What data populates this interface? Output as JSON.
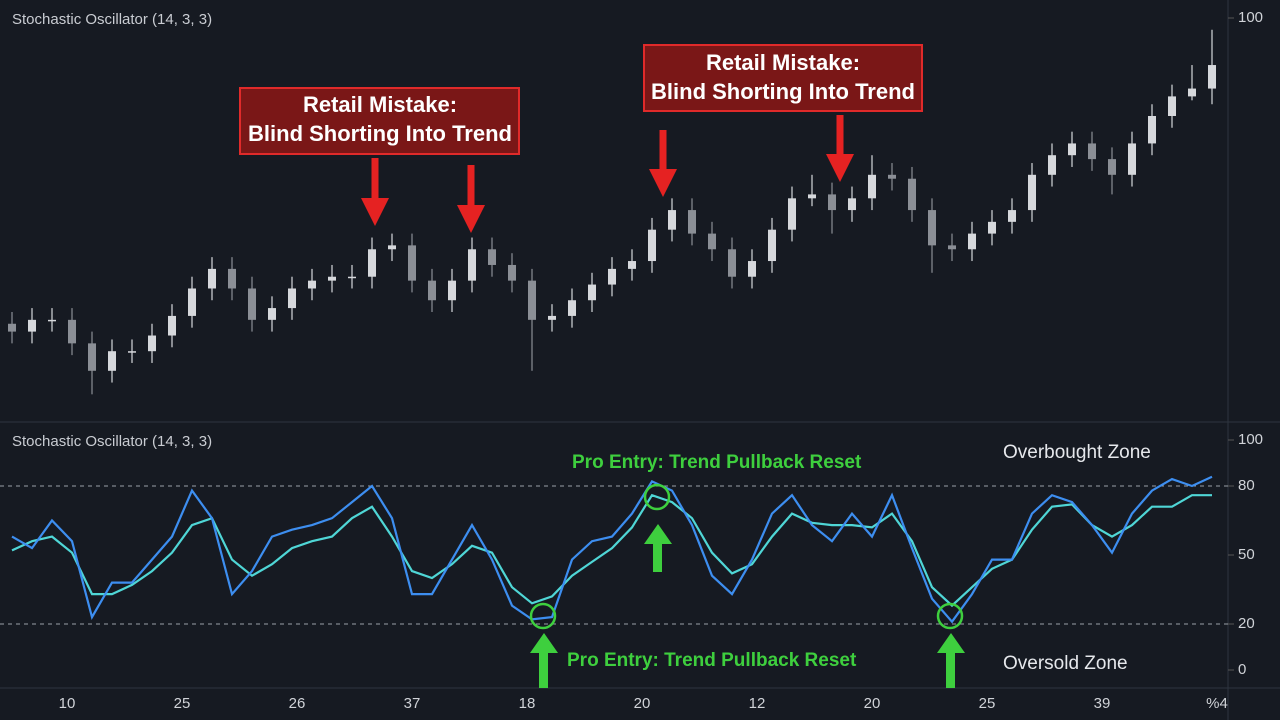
{
  "chart_data": [
    {
      "type": "candlestick",
      "title": "Stochastic Oscillator (14, 3, 3)",
      "open": [
        22,
        20,
        23,
        23,
        17,
        10,
        15,
        15,
        19,
        24,
        31,
        36,
        31,
        23,
        26,
        31,
        33,
        34,
        34,
        41,
        42,
        33,
        28,
        33,
        41,
        37,
        33,
        23,
        24,
        28,
        32,
        36,
        38,
        46,
        51,
        45,
        41,
        34,
        38,
        46,
        54,
        55,
        51,
        54,
        60,
        59,
        51,
        42,
        41,
        45,
        48,
        51,
        60,
        65,
        68,
        64,
        60,
        68,
        75,
        80,
        82
      ],
      "high": [
        25,
        26,
        26,
        26,
        20,
        18,
        18,
        22,
        27,
        34,
        39,
        39,
        34,
        29,
        34,
        36,
        37,
        37,
        44,
        45,
        45,
        36,
        36,
        44,
        44,
        40,
        36,
        27,
        31,
        35,
        39,
        41,
        49,
        54,
        54,
        48,
        44,
        41,
        49,
        57,
        60,
        58,
        57,
        65,
        63,
        62,
        54,
        45,
        48,
        51,
        54,
        63,
        68,
        71,
        71,
        67,
        71,
        78,
        83,
        88,
        97
      ],
      "low": [
        17,
        17,
        20,
        14,
        4,
        7,
        12,
        12,
        16,
        21,
        28,
        28,
        20,
        20,
        23,
        28,
        30,
        31,
        31,
        38,
        30,
        25,
        25,
        30,
        34,
        30,
        10,
        20,
        21,
        25,
        29,
        33,
        35,
        43,
        42,
        38,
        31,
        31,
        35,
        43,
        52,
        45,
        48,
        51,
        56,
        48,
        35,
        38,
        38,
        42,
        45,
        48,
        57,
        62,
        61,
        55,
        57,
        65,
        72,
        79,
        78
      ],
      "close": [
        20,
        23,
        23,
        17,
        10,
        15,
        15,
        19,
        24,
        31,
        36,
        31,
        23,
        26,
        31,
        33,
        34,
        34,
        41,
        42,
        33,
        28,
        33,
        41,
        37,
        33,
        23,
        24,
        28,
        32,
        36,
        38,
        46,
        51,
        45,
        41,
        34,
        38,
        46,
        54,
        55,
        51,
        54,
        60,
        59,
        51,
        42,
        41,
        45,
        48,
        51,
        60,
        65,
        68,
        64,
        60,
        68,
        75,
        80,
        82,
        88
      ],
      "ylim": [
        0,
        100
      ],
      "yticks": [
        100
      ],
      "annotations": [
        {
          "lines": [
            "Retail Mistake:",
            "Blind Shorting Into Trend"
          ]
        },
        {
          "lines": [
            "Retail Mistake:",
            "Blind Shorting Into Trend"
          ]
        }
      ]
    },
    {
      "type": "line",
      "title": "Stochastic Oscillator (14, 3, 3)",
      "series": [
        {
          "color": "#3d8ef0",
          "values": [
            58,
            53,
            65,
            56,
            23,
            38,
            38,
            48,
            58,
            78,
            66,
            33,
            43,
            58,
            61,
            63,
            66,
            73,
            80,
            66,
            33,
            33,
            48,
            63,
            48,
            28,
            22,
            23,
            48,
            56,
            58,
            68,
            82,
            78,
            63,
            41,
            33,
            48,
            68,
            76,
            63,
            56,
            68,
            58,
            76,
            53,
            31,
            21,
            33,
            48,
            48,
            68,
            76,
            73,
            63,
            51,
            68,
            78,
            83,
            80,
            84
          ]
        },
        {
          "color": "#4fd6d6",
          "values": [
            52,
            56,
            58,
            51,
            33,
            33,
            37,
            43,
            51,
            63,
            66,
            48,
            41,
            46,
            53,
            56,
            58,
            66,
            71,
            58,
            43,
            40,
            46,
            54,
            51,
            36,
            29,
            32,
            41,
            47,
            53,
            62,
            76,
            73,
            66,
            51,
            42,
            46,
            58,
            68,
            64,
            63,
            63,
            62,
            68,
            56,
            36,
            28,
            36,
            44,
            48,
            61,
            71,
            72,
            63,
            58,
            63,
            71,
            71,
            76,
            76
          ]
        }
      ],
      "ylim": [
        0,
        100
      ],
      "yticks": [
        100,
        80,
        50,
        20,
        0
      ],
      "zones": [
        {
          "label": "Overbought Zone",
          "level": 80
        },
        {
          "label": "Oversold Zone",
          "level": 20
        }
      ],
      "annotations": [
        {
          "text": "Pro Entry: Trend Pullback Reset"
        },
        {
          "text": "Pro Entry: Trend Pullback Reset"
        }
      ],
      "xtick_labels": [
        "10",
        "25",
        "26",
        "37",
        "18",
        "20",
        "12",
        "20",
        "25",
        "39",
        "%4"
      ]
    }
  ]
}
